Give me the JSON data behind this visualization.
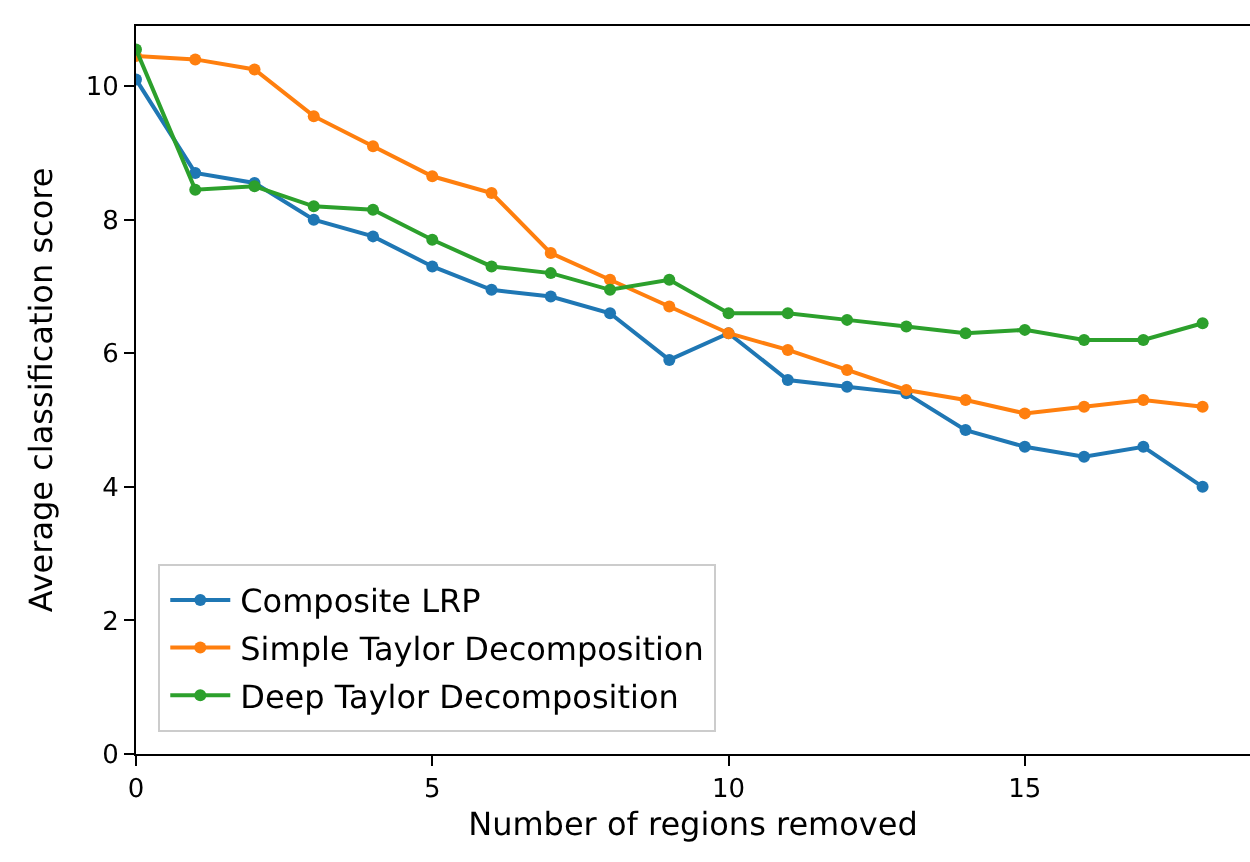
{
  "chart_data": {
    "type": "line",
    "xlabel": "Number of regions removed",
    "ylabel": "Average classification score",
    "x": [
      0,
      1,
      2,
      3,
      4,
      5,
      6,
      7,
      8,
      9,
      10,
      11,
      12,
      13,
      14,
      15,
      16,
      17,
      18
    ],
    "series": [
      {
        "name": "Composite LRP",
        "color": "#1f77b4",
        "values": [
          10.1,
          8.7,
          8.55,
          8.0,
          7.75,
          7.3,
          6.95,
          6.85,
          6.6,
          5.9,
          6.3,
          5.6,
          5.5,
          5.4,
          4.85,
          4.6,
          4.45,
          4.6,
          4.0
        ]
      },
      {
        "name": "Simple Taylor Decomposition",
        "color": "#ff7f0e",
        "values": [
          10.45,
          10.4,
          10.25,
          9.55,
          9.1,
          8.65,
          8.4,
          7.5,
          7.1,
          6.7,
          6.3,
          6.05,
          5.75,
          5.45,
          5.3,
          5.1,
          5.2,
          5.3,
          5.2
        ]
      },
      {
        "name": "Deep Taylor Decomposition",
        "color": "#2ca02c",
        "values": [
          10.55,
          8.45,
          8.5,
          8.2,
          8.15,
          7.7,
          7.3,
          7.2,
          6.95,
          7.1,
          6.6,
          6.6,
          6.5,
          6.4,
          6.3,
          6.35,
          6.2,
          6.2,
          6.45
        ]
      }
    ],
    "xlim": [
      0,
      18.8
    ],
    "xticks": [
      0,
      5,
      10,
      15
    ],
    "ylim": [
      0,
      10.9
    ],
    "yticks": [
      0,
      2,
      4,
      6,
      8,
      10
    ],
    "grid": false,
    "legend": "bottom left",
    "marker": "circle",
    "line_style": "solid"
  }
}
